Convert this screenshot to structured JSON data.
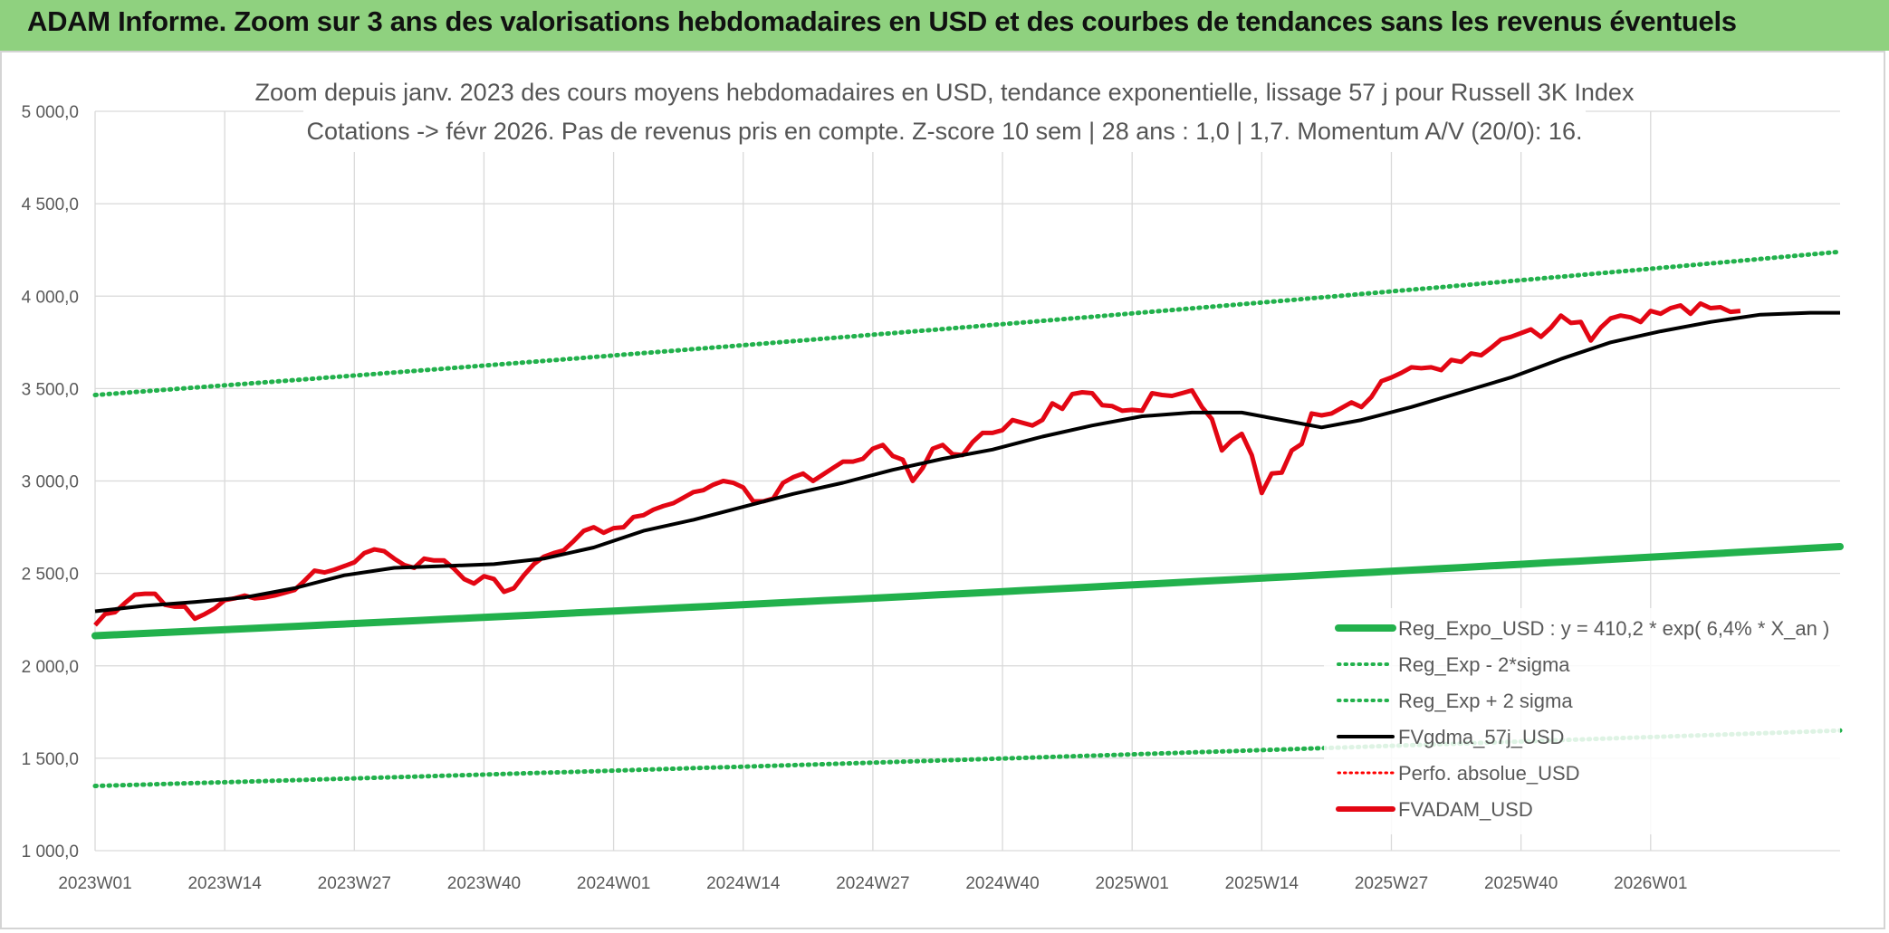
{
  "header": {
    "title": "ADAM Informe. Zoom sur 3 ans des valorisations hebdomadaires en USD et des courbes de tendances sans les revenus éventuels"
  },
  "chart_data": {
    "type": "line",
    "title": "Zoom depuis janv. 2023 des cours moyens hebdomadaires en USD, tendance exponentielle, lissage 57 j pour Russell 3K Index",
    "subtitle": "Cotations -> févr 2026. Pas de revenus pris en compte. Z-score 10 sem | 28 ans : 1,0 | 1,7. Momentum A/V (20/0): 16.",
    "xlabel": "",
    "ylabel": "",
    "ylim": [
      1000,
      5000
    ],
    "yticks": [
      "1 000,0",
      "1 500,0",
      "2 000,0",
      "2 500,0",
      "3 000,0",
      "3 500,0",
      "4 000,0",
      "4 500,0",
      "5 000,0"
    ],
    "x_tick_labels": [
      "2023W01",
      "2023W14",
      "2023W27",
      "2023W40",
      "2024W01",
      "2024W14",
      "2024W27",
      "2024W40",
      "2025W01",
      "2025W14",
      "2025W27",
      "2025W40",
      "2026W01"
    ],
    "grid": true,
    "legend_position": "bottom-right",
    "series": [
      {
        "name": "Reg_Expo_USD : y = 410,2 * exp( 6,4% *  X_an )",
        "color": "#22b14c",
        "style": "solid-thick",
        "start": 2163,
        "end": 2645
      },
      {
        "name": "Reg_Exp - 2*sigma",
        "color": "#22b14c",
        "style": "dotted",
        "start": 1350,
        "end": 1650
      },
      {
        "name": "Reg_Exp + 2 sigma",
        "color": "#22b14c",
        "style": "dotted",
        "start": 3465,
        "end": 4240
      },
      {
        "name": "FVgdma_57j_USD",
        "color": "#000000",
        "style": "solid",
        "points": [
          [
            0,
            2295
          ],
          [
            5,
            2325
          ],
          [
            10,
            2345
          ],
          [
            15,
            2370
          ],
          [
            20,
            2420
          ],
          [
            25,
            2490
          ],
          [
            30,
            2530
          ],
          [
            35,
            2540
          ],
          [
            40,
            2550
          ],
          [
            45,
            2580
          ],
          [
            50,
            2640
          ],
          [
            55,
            2730
          ],
          [
            60,
            2790
          ],
          [
            65,
            2860
          ],
          [
            70,
            2930
          ],
          [
            75,
            2990
          ],
          [
            80,
            3060
          ],
          [
            85,
            3120
          ],
          [
            90,
            3170
          ],
          [
            95,
            3240
          ],
          [
            100,
            3300
          ],
          [
            105,
            3350
          ],
          [
            110,
            3370
          ],
          [
            115,
            3370
          ],
          [
            120,
            3320
          ],
          [
            123,
            3290
          ],
          [
            127,
            3330
          ],
          [
            132,
            3400
          ],
          [
            137,
            3480
          ],
          [
            142,
            3560
          ],
          [
            147,
            3660
          ],
          [
            152,
            3750
          ],
          [
            157,
            3810
          ],
          [
            162,
            3860
          ],
          [
            167,
            3900
          ],
          [
            172,
            3910
          ],
          [
            175,
            3910
          ]
        ]
      },
      {
        "name": "Perfo. absolue_USD",
        "color": "#ff0000",
        "style": "dotted"
      },
      {
        "name": "FVADAM_USD",
        "color": "#e30613",
        "style": "solid-thick",
        "points": [
          [
            0,
            2220
          ],
          [
            1,
            2280
          ],
          [
            2,
            2290
          ],
          [
            3,
            2340
          ],
          [
            4,
            2385
          ],
          [
            5,
            2390
          ],
          [
            6,
            2390
          ],
          [
            7,
            2330
          ],
          [
            8,
            2320
          ],
          [
            9,
            2320
          ],
          [
            10,
            2255
          ],
          [
            11,
            2280
          ],
          [
            12,
            2310
          ],
          [
            13,
            2355
          ],
          [
            14,
            2365
          ],
          [
            15,
            2380
          ],
          [
            16,
            2365
          ],
          [
            17,
            2370
          ],
          [
            18,
            2380
          ],
          [
            19,
            2395
          ],
          [
            20,
            2410
          ],
          [
            21,
            2460
          ],
          [
            22,
            2515
          ],
          [
            23,
            2505
          ],
          [
            24,
            2520
          ],
          [
            25,
            2540
          ],
          [
            26,
            2560
          ],
          [
            27,
            2610
          ],
          [
            28,
            2630
          ],
          [
            29,
            2620
          ],
          [
            30,
            2580
          ],
          [
            31,
            2545
          ],
          [
            32,
            2530
          ],
          [
            33,
            2580
          ],
          [
            34,
            2570
          ],
          [
            35,
            2570
          ],
          [
            36,
            2525
          ],
          [
            37,
            2470
          ],
          [
            38,
            2445
          ],
          [
            39,
            2485
          ],
          [
            40,
            2470
          ],
          [
            41,
            2400
          ],
          [
            42,
            2420
          ],
          [
            43,
            2490
          ],
          [
            44,
            2550
          ],
          [
            45,
            2590
          ],
          [
            46,
            2610
          ],
          [
            47,
            2625
          ],
          [
            48,
            2675
          ],
          [
            49,
            2730
          ],
          [
            50,
            2750
          ],
          [
            51,
            2720
          ],
          [
            52,
            2745
          ],
          [
            53,
            2750
          ],
          [
            54,
            2805
          ],
          [
            55,
            2815
          ],
          [
            56,
            2845
          ],
          [
            57,
            2865
          ],
          [
            58,
            2880
          ],
          [
            59,
            2910
          ],
          [
            60,
            2940
          ],
          [
            61,
            2950
          ],
          [
            62,
            2980
          ],
          [
            63,
            3000
          ],
          [
            64,
            2990
          ],
          [
            65,
            2965
          ],
          [
            66,
            2890
          ],
          [
            67,
            2890
          ],
          [
            68,
            2905
          ],
          [
            69,
            2990
          ],
          [
            70,
            3020
          ],
          [
            71,
            3040
          ],
          [
            72,
            3000
          ],
          [
            73,
            3035
          ],
          [
            74,
            3070
          ],
          [
            75,
            3105
          ],
          [
            76,
            3105
          ],
          [
            77,
            3120
          ],
          [
            78,
            3175
          ],
          [
            79,
            3195
          ],
          [
            80,
            3135
          ],
          [
            81,
            3115
          ],
          [
            82,
            3000
          ],
          [
            83,
            3070
          ],
          [
            84,
            3175
          ],
          [
            85,
            3195
          ],
          [
            86,
            3145
          ],
          [
            87,
            3140
          ],
          [
            88,
            3210
          ],
          [
            89,
            3260
          ],
          [
            90,
            3260
          ],
          [
            91,
            3275
          ],
          [
            92,
            3330
          ],
          [
            93,
            3315
          ],
          [
            94,
            3300
          ],
          [
            95,
            3330
          ],
          [
            96,
            3420
          ],
          [
            97,
            3390
          ],
          [
            98,
            3470
          ],
          [
            99,
            3480
          ],
          [
            100,
            3475
          ],
          [
            101,
            3410
          ],
          [
            102,
            3405
          ],
          [
            103,
            3380
          ],
          [
            104,
            3385
          ],
          [
            105,
            3380
          ],
          [
            106,
            3475
          ],
          [
            107,
            3465
          ],
          [
            108,
            3460
          ],
          [
            109,
            3475
          ],
          [
            110,
            3490
          ],
          [
            111,
            3400
          ],
          [
            112,
            3335
          ],
          [
            113,
            3165
          ],
          [
            114,
            3220
          ],
          [
            115,
            3255
          ],
          [
            116,
            3140
          ],
          [
            117,
            2935
          ],
          [
            118,
            3040
          ],
          [
            119,
            3045
          ],
          [
            120,
            3165
          ],
          [
            121,
            3200
          ],
          [
            122,
            3365
          ],
          [
            123,
            3355
          ],
          [
            124,
            3365
          ],
          [
            125,
            3395
          ],
          [
            126,
            3425
          ],
          [
            127,
            3400
          ],
          [
            128,
            3455
          ],
          [
            129,
            3540
          ],
          [
            130,
            3560
          ],
          [
            131,
            3585
          ],
          [
            132,
            3615
          ],
          [
            133,
            3610
          ],
          [
            134,
            3615
          ],
          [
            135,
            3600
          ],
          [
            136,
            3655
          ],
          [
            137,
            3645
          ],
          [
            138,
            3690
          ],
          [
            139,
            3680
          ],
          [
            140,
            3720
          ],
          [
            141,
            3765
          ],
          [
            142,
            3780
          ],
          [
            143,
            3800
          ],
          [
            144,
            3820
          ],
          [
            145,
            3780
          ],
          [
            146,
            3830
          ],
          [
            147,
            3895
          ],
          [
            148,
            3855
          ],
          [
            149,
            3860
          ],
          [
            150,
            3760
          ],
          [
            151,
            3830
          ],
          [
            152,
            3880
          ],
          [
            153,
            3895
          ],
          [
            154,
            3885
          ],
          [
            155,
            3860
          ],
          [
            156,
            3920
          ],
          [
            157,
            3905
          ],
          [
            158,
            3935
          ],
          [
            159,
            3950
          ],
          [
            160,
            3905
          ],
          [
            161,
            3960
          ],
          [
            162,
            3935
          ],
          [
            163,
            3940
          ],
          [
            164,
            3915
          ],
          [
            165,
            3920
          ]
        ]
      }
    ]
  }
}
